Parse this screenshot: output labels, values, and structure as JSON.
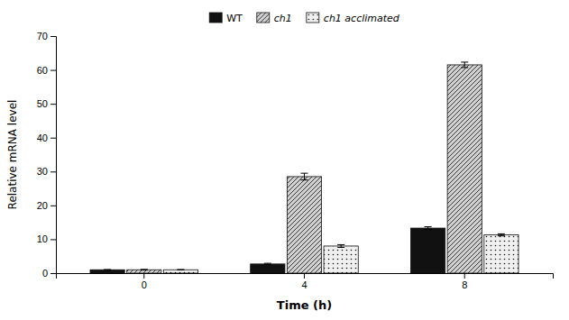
{
  "chart_data": {
    "type": "bar",
    "xlabel": "Time (h)",
    "ylabel": "Relative mRNA level",
    "categories": [
      "0",
      "4",
      "8"
    ],
    "series": [
      {
        "name": "WT",
        "color": "#111111",
        "values": [
          1.0,
          2.7,
          13.3
        ],
        "errors": [
          0.05,
          0.2,
          0.4
        ]
      },
      {
        "name": "ch1",
        "color": "#d0d0d0",
        "values": [
          1.0,
          28.5,
          61.5
        ],
        "errors": [
          0.1,
          1.0,
          0.8
        ]
      },
      {
        "name": "ch1 acclimated",
        "color": "#f0f0f0",
        "values": [
          1.0,
          8.0,
          11.3
        ],
        "errors": [
          0.05,
          0.4,
          0.3
        ]
      }
    ],
    "ylim": [
      0,
      70
    ],
    "yticks": [
      0,
      10,
      20,
      30,
      40,
      50,
      60,
      70
    ],
    "grid": false,
    "legend": "top"
  }
}
